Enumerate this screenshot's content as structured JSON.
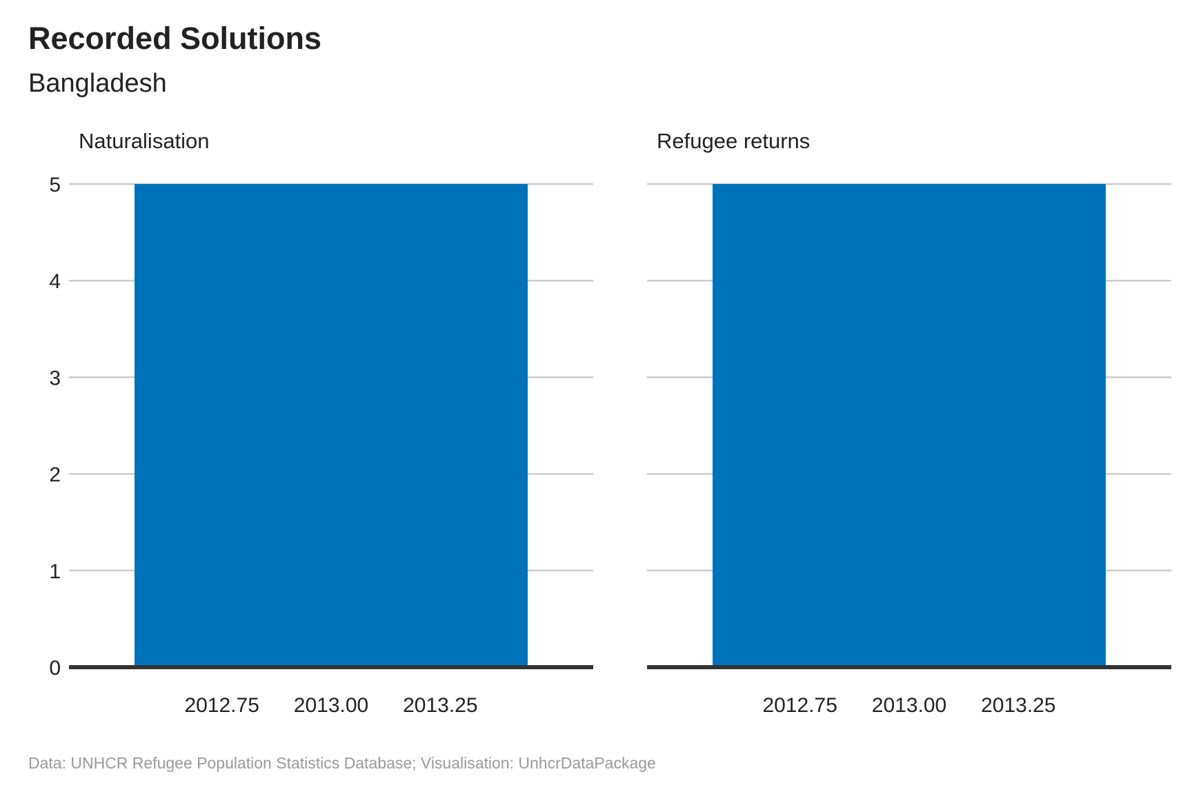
{
  "title": "Recorded Solutions",
  "subtitle": "Bangladesh",
  "caption": "Data: UNHCR Refugee Population Statistics Database; Visualisation: UnhcrDataPackage",
  "colors": {
    "bar": "#0072bc",
    "grid": "#cccccc",
    "axis": "#333333"
  },
  "chart_data": [
    {
      "type": "bar",
      "facet": "Naturalisation",
      "x": [
        2013
      ],
      "values": [
        5
      ],
      "ylim": [
        0,
        5
      ],
      "yticks": [
        0,
        1,
        2,
        3,
        4,
        5
      ],
      "xticks": [
        "2012.75",
        "2013.00",
        "2013.25"
      ],
      "xtick_values": [
        2012.75,
        2013.0,
        2013.25
      ],
      "xlim": [
        2012.4,
        2013.6
      ],
      "bar_width": 0.9,
      "grid": true
    },
    {
      "type": "bar",
      "facet": "Refugee returns",
      "x": [
        2013
      ],
      "values": [
        5
      ],
      "ylim": [
        0,
        5
      ],
      "yticks": [
        0,
        1,
        2,
        3,
        4,
        5
      ],
      "xticks": [
        "2012.75",
        "2013.00",
        "2013.25"
      ],
      "xtick_values": [
        2012.75,
        2013.0,
        2013.25
      ],
      "xlim": [
        2012.4,
        2013.6
      ],
      "bar_width": 0.9,
      "grid": true
    }
  ]
}
